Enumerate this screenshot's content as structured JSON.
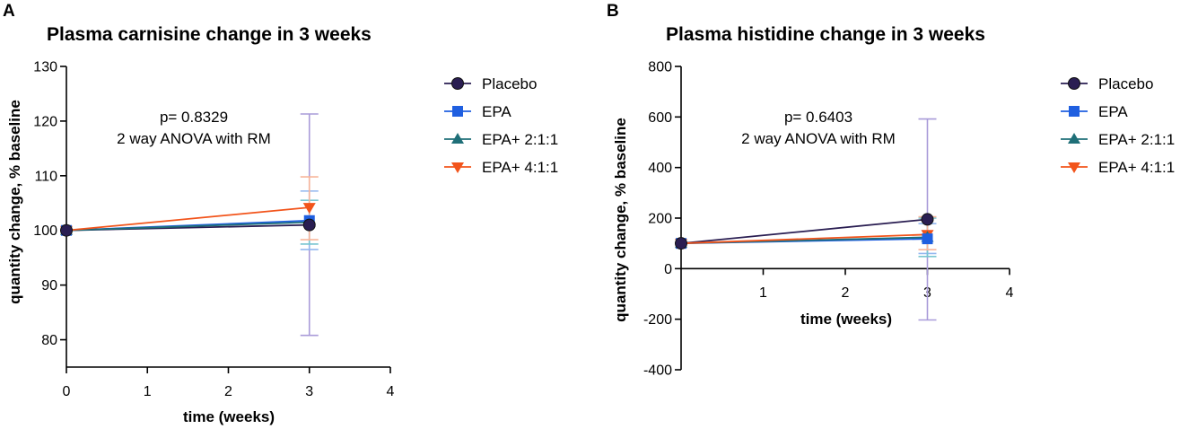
{
  "colors": {
    "Placebo": "#2a1e52",
    "EPA": "#1f5fe0",
    "EPA+ 2:1:1": "#1f6f78",
    "EPA+ 4:1:1": "#f2541b",
    "Placebo_error": "#a99bd9",
    "EPA_error": "#93b7ef",
    "EPA+ 2:1:1_error": "#79c6d1",
    "EPA+ 4:1:1_error": "#f7b59a"
  },
  "chart_data": [
    {
      "type": "line",
      "panel": "A",
      "title": "Plasma carnisine change in 3 weeks",
      "xlabel": "time (weeks)",
      "ylabel": "quantity change, % baseline",
      "xlim": [
        0,
        4
      ],
      "ylim": [
        75,
        130
      ],
      "xticks": [
        0,
        1,
        2,
        3,
        4
      ],
      "yticks": [
        80,
        90,
        100,
        110,
        120,
        130
      ],
      "x_axis_at_y": 75,
      "annotation": [
        "p= 0.8329",
        "2 way ANOVA with RM"
      ],
      "legend_position": "right",
      "series": [
        {
          "name": "Placebo",
          "marker": "circle",
          "x": [
            0,
            3
          ],
          "y": [
            100,
            101
          ],
          "err_low": [
            null,
            80.8
          ],
          "err_high": [
            null,
            121.3
          ]
        },
        {
          "name": "EPA",
          "marker": "square",
          "x": [
            0,
            3
          ],
          "y": [
            100,
            101.8
          ],
          "err_low": [
            null,
            96.5
          ],
          "err_high": [
            null,
            107.2
          ]
        },
        {
          "name": "EPA+ 2:1:1",
          "marker": "triangle-up",
          "x": [
            0,
            3
          ],
          "y": [
            100,
            101.5
          ],
          "err_low": [
            null,
            97.5
          ],
          "err_high": [
            null,
            105.5
          ]
        },
        {
          "name": "EPA+ 4:1:1",
          "marker": "triangle-down",
          "x": [
            0,
            3
          ],
          "y": [
            100,
            104.2
          ],
          "err_low": [
            null,
            98.3
          ],
          "err_high": [
            null,
            109.8
          ]
        }
      ]
    },
    {
      "type": "line",
      "panel": "B",
      "title": "Plasma histidine change in 3 weeks",
      "xlabel": "time (weeks)",
      "ylabel": "quantity change, % baseline",
      "xlim": [
        0,
        4
      ],
      "ylim": [
        -400,
        800
      ],
      "xticks": [
        1,
        2,
        3,
        4
      ],
      "yticks": [
        -400,
        -200,
        0,
        200,
        400,
        600,
        800
      ],
      "x_axis_at_y": 0,
      "annotation": [
        "p= 0.6403",
        "2 way ANOVA with RM"
      ],
      "legend_position": "right",
      "series": [
        {
          "name": "Placebo",
          "marker": "circle",
          "x": [
            0,
            3
          ],
          "y": [
            100,
            195
          ],
          "err_low": [
            null,
            -203
          ],
          "err_high": [
            null,
            592
          ]
        },
        {
          "name": "EPA",
          "marker": "square",
          "x": [
            0,
            3
          ],
          "y": [
            100,
            118
          ],
          "err_low": [
            null,
            60
          ],
          "err_high": [
            null,
            178
          ]
        },
        {
          "name": "EPA+ 2:1:1",
          "marker": "triangle-up",
          "x": [
            0,
            3
          ],
          "y": [
            100,
            124
          ],
          "err_low": [
            null,
            48
          ],
          "err_high": [
            null,
            200
          ]
        },
        {
          "name": "EPA+ 4:1:1",
          "marker": "triangle-down",
          "x": [
            0,
            3
          ],
          "y": [
            100,
            135
          ],
          "err_low": [
            null,
            75
          ],
          "err_high": [
            null,
            205
          ]
        }
      ]
    }
  ]
}
